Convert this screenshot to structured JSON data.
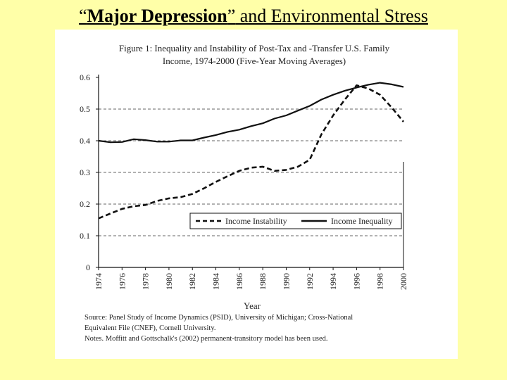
{
  "slide": {
    "title_open_quote": "“",
    "title_bold": "Major Depression",
    "title_close_quote": "”",
    "title_rest": " and Environmental Stress"
  },
  "colors": {
    "background": "#ffffa8",
    "panel": "#ffffff",
    "ink": "#111111"
  },
  "chart_data": {
    "type": "line",
    "title_line1": "Figure 1: Inequality and Instability of Post-Tax and -Transfer U.S. Family",
    "title_line2": "Income, 1974-2000 (Five-Year Moving Averages)",
    "xlabel": "Year",
    "ylabel": "",
    "xlim": [
      1974,
      2000
    ],
    "ylim": [
      0,
      0.6
    ],
    "yticks": [
      "0",
      "0.1",
      "0.2",
      "0.3",
      "0.4",
      "0.5",
      "0.6"
    ],
    "xticks": [
      "1974",
      "1976",
      "1978",
      "1980",
      "1982",
      "1984",
      "1986",
      "1988",
      "1990",
      "1992",
      "1994",
      "1996",
      "1998",
      "2000"
    ],
    "grid": "horizontal dashed at 0.2, 0.3, 0.4, 0.5",
    "legend_position": "lower-right",
    "x": [
      1974,
      1975,
      1976,
      1977,
      1978,
      1979,
      1980,
      1981,
      1982,
      1983,
      1984,
      1985,
      1986,
      1987,
      1988,
      1989,
      1990,
      1991,
      1992,
      1993,
      1994,
      1995,
      1996,
      1997,
      1998,
      1999,
      2000
    ],
    "series": [
      {
        "name": "Income Instability",
        "style": "dashed",
        "values": [
          0.155,
          0.17,
          0.185,
          0.193,
          0.197,
          0.21,
          0.218,
          0.222,
          0.232,
          0.25,
          0.27,
          0.288,
          0.305,
          0.315,
          0.318,
          0.305,
          0.308,
          0.318,
          0.34,
          0.42,
          0.48,
          0.53,
          0.575,
          0.565,
          0.545,
          0.505,
          0.46
        ]
      },
      {
        "name": "Income Inequality",
        "style": "solid",
        "values": [
          0.4,
          0.395,
          0.396,
          0.405,
          0.402,
          0.397,
          0.397,
          0.401,
          0.401,
          0.41,
          0.418,
          0.428,
          0.435,
          0.446,
          0.455,
          0.47,
          0.48,
          0.495,
          0.51,
          0.53,
          0.545,
          0.558,
          0.568,
          0.577,
          0.583,
          0.578,
          0.57
        ]
      }
    ],
    "notes": [
      "Source: Panel Study of Income Dynamics (PSID), University of Michigan; Cross-National",
      "Equivalent File (CNEF), Cornell University.",
      "Notes. Moffitt and Gottschalk's (2002) permanent-transitory model has been used."
    ]
  }
}
